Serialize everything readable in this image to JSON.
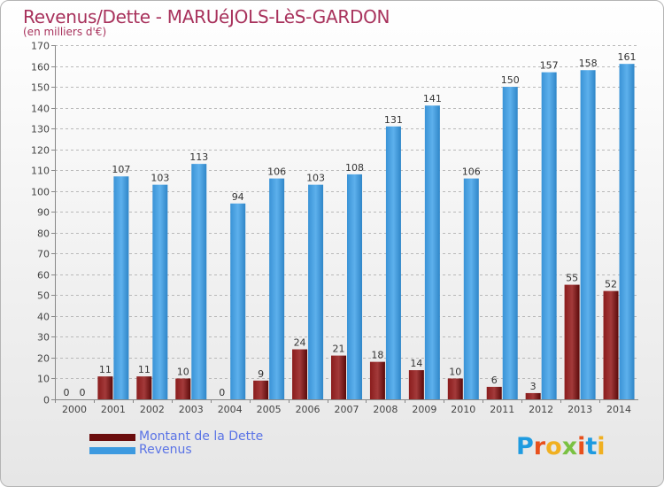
{
  "title": "Revenus/Dette - MARUéJOLS-LèS-GARDON",
  "subtitle": "(en milliers d'€)",
  "colors": {
    "title": "#a8325c",
    "dette": "#7a0f0f",
    "revenus": "#4ea3e0",
    "legend_text": "#5a73e6",
    "axis_text": "#444444"
  },
  "legend": [
    {
      "label": "Montant de la Dette",
      "color": "#6b0d0d"
    },
    {
      "label": "Revenus",
      "color": "#3d9ae0"
    }
  ],
  "logo": {
    "letters": [
      "P",
      "r",
      "o",
      "x",
      "i",
      "t",
      "i"
    ],
    "colors": [
      "#1f9be0",
      "#e8501c",
      "#f0b021",
      "#7ac142",
      "#e8501c",
      "#1f9be0",
      "#f0b021"
    ]
  },
  "chart_data": {
    "type": "bar",
    "categories": [
      "2000",
      "2001",
      "2002",
      "2003",
      "2004",
      "2005",
      "2006",
      "2007",
      "2008",
      "2009",
      "2010",
      "2011",
      "2012",
      "2013",
      "2014"
    ],
    "series": [
      {
        "name": "Montant de la Dette",
        "values": [
          0,
          11,
          11,
          10,
          0,
          9,
          24,
          21,
          18,
          14,
          10,
          6,
          3,
          55,
          52
        ]
      },
      {
        "name": "Revenus",
        "values": [
          0,
          107,
          103,
          113,
          94,
          106,
          103,
          108,
          131,
          141,
          106,
          150,
          157,
          158,
          161
        ]
      }
    ],
    "ylim": [
      0,
      170
    ],
    "yticks": [
      0,
      10,
      20,
      30,
      40,
      50,
      60,
      70,
      80,
      90,
      100,
      110,
      120,
      130,
      140,
      150,
      160,
      170
    ],
    "grid": true,
    "legend_position": "bottom-left"
  }
}
